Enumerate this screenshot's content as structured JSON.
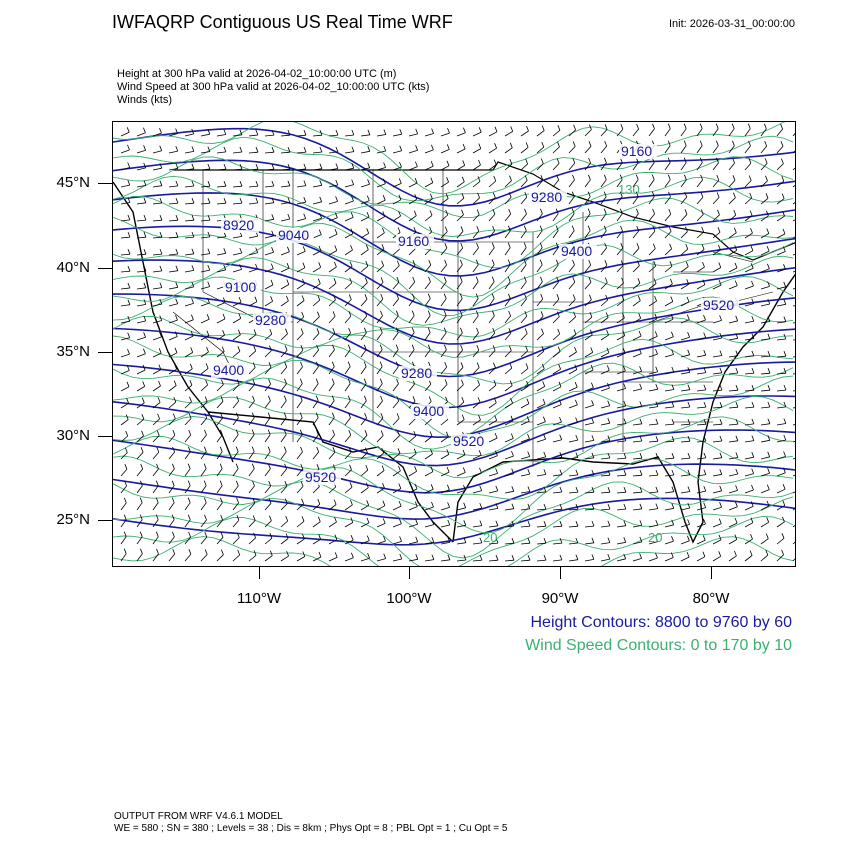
{
  "header": {
    "title": "IWFAQRP Contiguous US Real Time WRF",
    "init": "Init: 2026-03-31_00:00:00"
  },
  "descriptions": {
    "height": "Height at 300 hPa valid at 2026-04-02_10:00:00 UTC   (m)",
    "wind_speed": "Wind Speed at 300 hPa valid at 2026-04-02_10:00:00 UTC   (kts)",
    "winds": "Winds   (kts)"
  },
  "axes": {
    "lat_labels": [
      "45°N",
      "40°N",
      "35°N",
      "30°N",
      "25°N"
    ],
    "lon_labels": [
      "110°W",
      "100°W",
      "90°W",
      "80°W"
    ]
  },
  "contour_labels": [
    "9160",
    "9280",
    "8920",
    "9040",
    "9160",
    "9400",
    "9100",
    "9280",
    "9400",
    "9280",
    "9400",
    "9520",
    "9520",
    "9520"
  ],
  "wind_labels": [
    "130",
    "20",
    "20"
  ],
  "legend": {
    "height": "Height Contours: 8800 to 9760 by 60",
    "wind_speed": "Wind Speed Contours: 0 to 170 by 10"
  },
  "footer": {
    "line1": "OUTPUT FROM WRF V4.6.1 MODEL",
    "line2": "WE = 580 ; SN = 380 ; Levels = 38 ; Dis = 8km ; Phys Opt = 8 ; PBL Opt = 1 ; Cu Opt = 5"
  },
  "colors": {
    "height_contour": "#1a1aa0",
    "wind_contour": "#3cb070",
    "barb": "#000000"
  }
}
